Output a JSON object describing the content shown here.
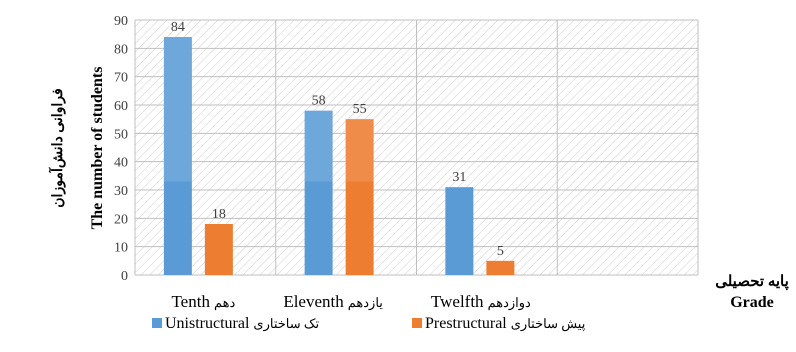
{
  "chart_data": {
    "type": "bar",
    "categories": [
      "Tenth",
      "Eleventh",
      "Twelfth",
      ""
    ],
    "category_labels": [
      {
        "en": "Tenth",
        "fa": "دهم"
      },
      {
        "en": "Eleventh",
        "fa": "یازدهم"
      },
      {
        "en": "Twelfth",
        "fa": "دوازدهم"
      },
      {
        "en": "",
        "fa": ""
      }
    ],
    "series": [
      {
        "name": "Unistructural",
        "name_fa": "تک ساختاری",
        "values": [
          84,
          58,
          31,
          null
        ],
        "color": "#5b9bd5"
      },
      {
        "name": "Prestructural",
        "name_fa": "پیش ساختاری",
        "values": [
          18,
          55,
          5,
          null
        ],
        "color": "#ed7d31"
      }
    ],
    "ylim": [
      0,
      90
    ],
    "yticks": [
      0,
      10,
      20,
      30,
      40,
      50,
      60,
      70,
      80,
      90
    ],
    "ylabel_fa": "فراوانی دانش‌آموزان",
    "ylabel_en": "The number of students",
    "xlabel_fa": "پایه تحصیلی",
    "xlabel_en": "Grade",
    "legend_position": "bottom",
    "grid": true,
    "plot_background": "diagonal-hatch"
  }
}
